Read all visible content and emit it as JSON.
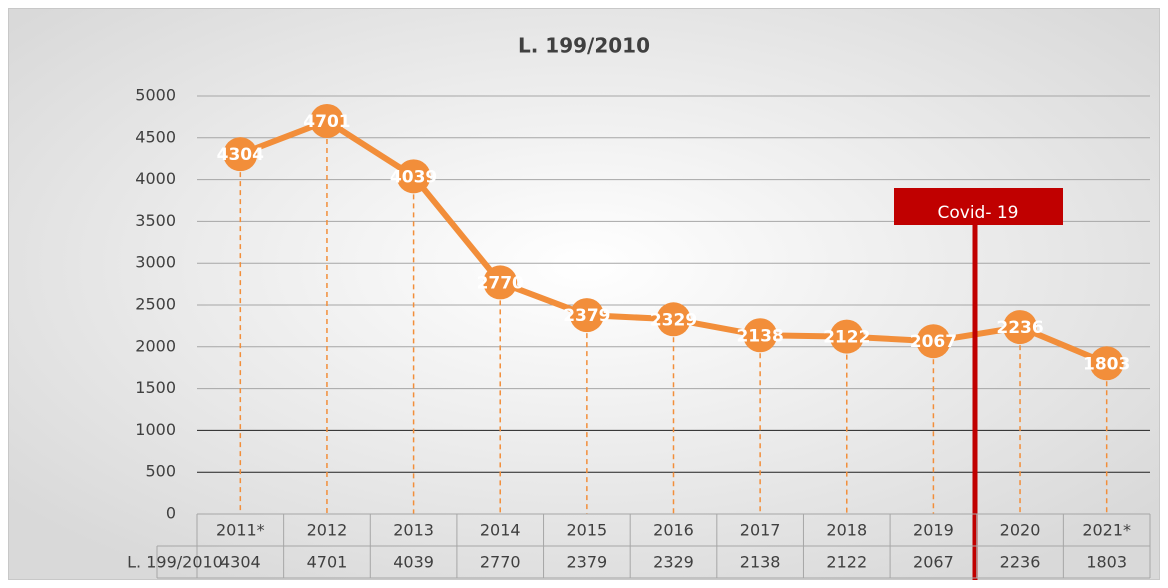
{
  "chart_data": {
    "type": "line",
    "title": "L. 199/2010",
    "categories": [
      "2011*",
      "2012",
      "2013",
      "2014",
      "2015",
      "2016",
      "2017",
      "2018",
      "2019",
      "2020",
      "2021*"
    ],
    "series": [
      {
        "name": "L. 199/2010",
        "color": "#f28e3a",
        "values": [
          4304,
          4701,
          4039,
          2770,
          2379,
          2329,
          2138,
          2122,
          2067,
          2236,
          1803
        ]
      }
    ],
    "ylim": [
      0,
      5000
    ],
    "yticks": [
      0,
      500,
      1000,
      1500,
      2000,
      2500,
      3000,
      3500,
      4000,
      4500,
      5000
    ],
    "grid": true,
    "data_table": true,
    "annotation": "Covid- 19"
  }
}
